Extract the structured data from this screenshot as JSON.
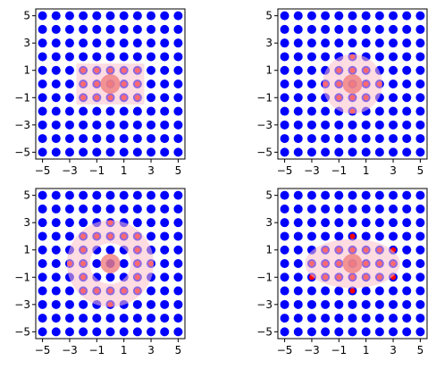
{
  "chart_data": [
    {
      "type": "scatter",
      "title": "",
      "xlabel": "",
      "ylabel": "",
      "xlim": [
        -5.5,
        5.5
      ],
      "ylim": [
        -5.5,
        5.5
      ],
      "xticks": [
        "−5",
        "−3",
        "−1",
        "1",
        "3",
        "5"
      ],
      "yticks": [
        "5",
        "3",
        "1",
        "−1",
        "−3",
        "−5"
      ],
      "grid": false,
      "grid_points": {
        "x_range": [
          -5,
          5
        ],
        "y_range": [
          -5,
          5
        ],
        "step": 1,
        "color": "#0000ff"
      },
      "center": {
        "x": 0,
        "y": 0,
        "color": "#f08080"
      },
      "highlighted": {
        "color": "#ff0000",
        "points": [
          [
            -2,
            1
          ],
          [
            -1,
            1
          ],
          [
            0,
            1
          ],
          [
            1,
            1
          ],
          [
            2,
            1
          ],
          [
            -2,
            0
          ],
          [
            -1,
            0
          ],
          [
            0,
            0
          ],
          [
            1,
            0
          ],
          [
            2,
            0
          ],
          [
            -2,
            -1
          ],
          [
            -1,
            -1
          ],
          [
            0,
            -1
          ],
          [
            1,
            -1
          ],
          [
            2,
            -1
          ]
        ]
      },
      "region": {
        "shape": "rectangle",
        "x": [
          -2.5,
          2.5
        ],
        "y": [
          -1.5,
          1.5
        ],
        "color": "#ffc0cb"
      }
    },
    {
      "type": "scatter",
      "title": "",
      "xlabel": "",
      "ylabel": "",
      "xlim": [
        -5.5,
        5.5
      ],
      "ylim": [
        -5.5,
        5.5
      ],
      "xticks": [
        "−5",
        "−3",
        "−1",
        "1",
        "3",
        "5"
      ],
      "yticks": [
        "5",
        "3",
        "1",
        "−1",
        "−3",
        "−5"
      ],
      "grid": false,
      "grid_points": {
        "x_range": [
          -5,
          5
        ],
        "y_range": [
          -5,
          5
        ],
        "step": 1,
        "color": "#0000ff"
      },
      "center": {
        "x": 0,
        "y": 0,
        "color": "#f08080"
      },
      "highlighted": {
        "color": "#ff0000",
        "points": [
          [
            0,
            2
          ],
          [
            -1,
            1
          ],
          [
            0,
            1
          ],
          [
            1,
            1
          ],
          [
            -2,
            0
          ],
          [
            -1,
            0
          ],
          [
            0,
            0
          ],
          [
            1,
            0
          ],
          [
            2,
            0
          ],
          [
            -1,
            -1
          ],
          [
            0,
            -1
          ],
          [
            1,
            -1
          ],
          [
            0,
            -2
          ]
        ]
      },
      "region": {
        "shape": "disk",
        "cx": 0,
        "cy": 0,
        "r": 2.2,
        "color": "#ffc0cb"
      }
    },
    {
      "type": "scatter",
      "title": "",
      "xlabel": "",
      "ylabel": "",
      "xlim": [
        -5.5,
        5.5
      ],
      "ylim": [
        -5.5,
        5.5
      ],
      "xticks": [
        "−5",
        "−3",
        "−1",
        "1",
        "3",
        "5"
      ],
      "yticks": [
        "5",
        "3",
        "1",
        "−1",
        "−3",
        "−5"
      ],
      "grid": false,
      "grid_points": {
        "x_range": [
          -5,
          5
        ],
        "y_range": [
          -5,
          5
        ],
        "step": 1,
        "color": "#0000ff"
      },
      "center": {
        "x": 0,
        "y": 0,
        "color": "#f08080"
      },
      "highlighted": {
        "color": "#ff0000",
        "points": [
          [
            0,
            3
          ],
          [
            -2,
            2
          ],
          [
            -1,
            2
          ],
          [
            0,
            2
          ],
          [
            1,
            2
          ],
          [
            2,
            2
          ],
          [
            -2,
            1
          ],
          [
            2,
            1
          ],
          [
            -3,
            0
          ],
          [
            -2,
            0
          ],
          [
            2,
            0
          ],
          [
            3,
            0
          ],
          [
            -2,
            -1
          ],
          [
            2,
            -1
          ],
          [
            -2,
            -2
          ],
          [
            -1,
            -2
          ],
          [
            0,
            -2
          ],
          [
            1,
            -2
          ],
          [
            2,
            -2
          ],
          [
            0,
            -3
          ]
        ]
      },
      "region": {
        "shape": "annulus",
        "cx": 0,
        "cy": 0,
        "r_inner": 1.5,
        "r_outer": 3.2,
        "color": "#ffc0cb"
      }
    },
    {
      "type": "scatter",
      "title": "",
      "xlabel": "",
      "ylabel": "",
      "xlim": [
        -5.5,
        5.5
      ],
      "ylim": [
        -5.5,
        5.5
      ],
      "xticks": [
        "−5",
        "−3",
        "−1",
        "1",
        "3",
        "5"
      ],
      "yticks": [
        "5",
        "3",
        "1",
        "−1",
        "−3",
        "−5"
      ],
      "grid": false,
      "grid_points": {
        "x_range": [
          -5,
          5
        ],
        "y_range": [
          -5,
          5
        ],
        "step": 1,
        "color": "#0000ff"
      },
      "center": {
        "x": 0,
        "y": 0,
        "color": "#f08080"
      },
      "highlighted": {
        "color": "#ff0000",
        "points": [
          [
            0,
            2
          ],
          [
            -2,
            1
          ],
          [
            -1,
            1
          ],
          [
            0,
            1
          ],
          [
            1,
            1
          ],
          [
            2,
            1
          ],
          [
            3,
            1
          ],
          [
            -3,
            0
          ],
          [
            -2,
            0
          ],
          [
            -1,
            0
          ],
          [
            0,
            0
          ],
          [
            1,
            0
          ],
          [
            2,
            0
          ],
          [
            3,
            0
          ],
          [
            -3,
            -1
          ],
          [
            -2,
            -1
          ],
          [
            -1,
            -1
          ],
          [
            0,
            -1
          ],
          [
            1,
            -1
          ],
          [
            2,
            -1
          ],
          [
            3,
            -1
          ],
          [
            0,
            -2
          ]
        ]
      },
      "region": {
        "shape": "ellipse",
        "cx": 0,
        "cy": 0,
        "rx": 3.5,
        "ry": 1.8,
        "color": "#ffc0cb"
      }
    }
  ]
}
